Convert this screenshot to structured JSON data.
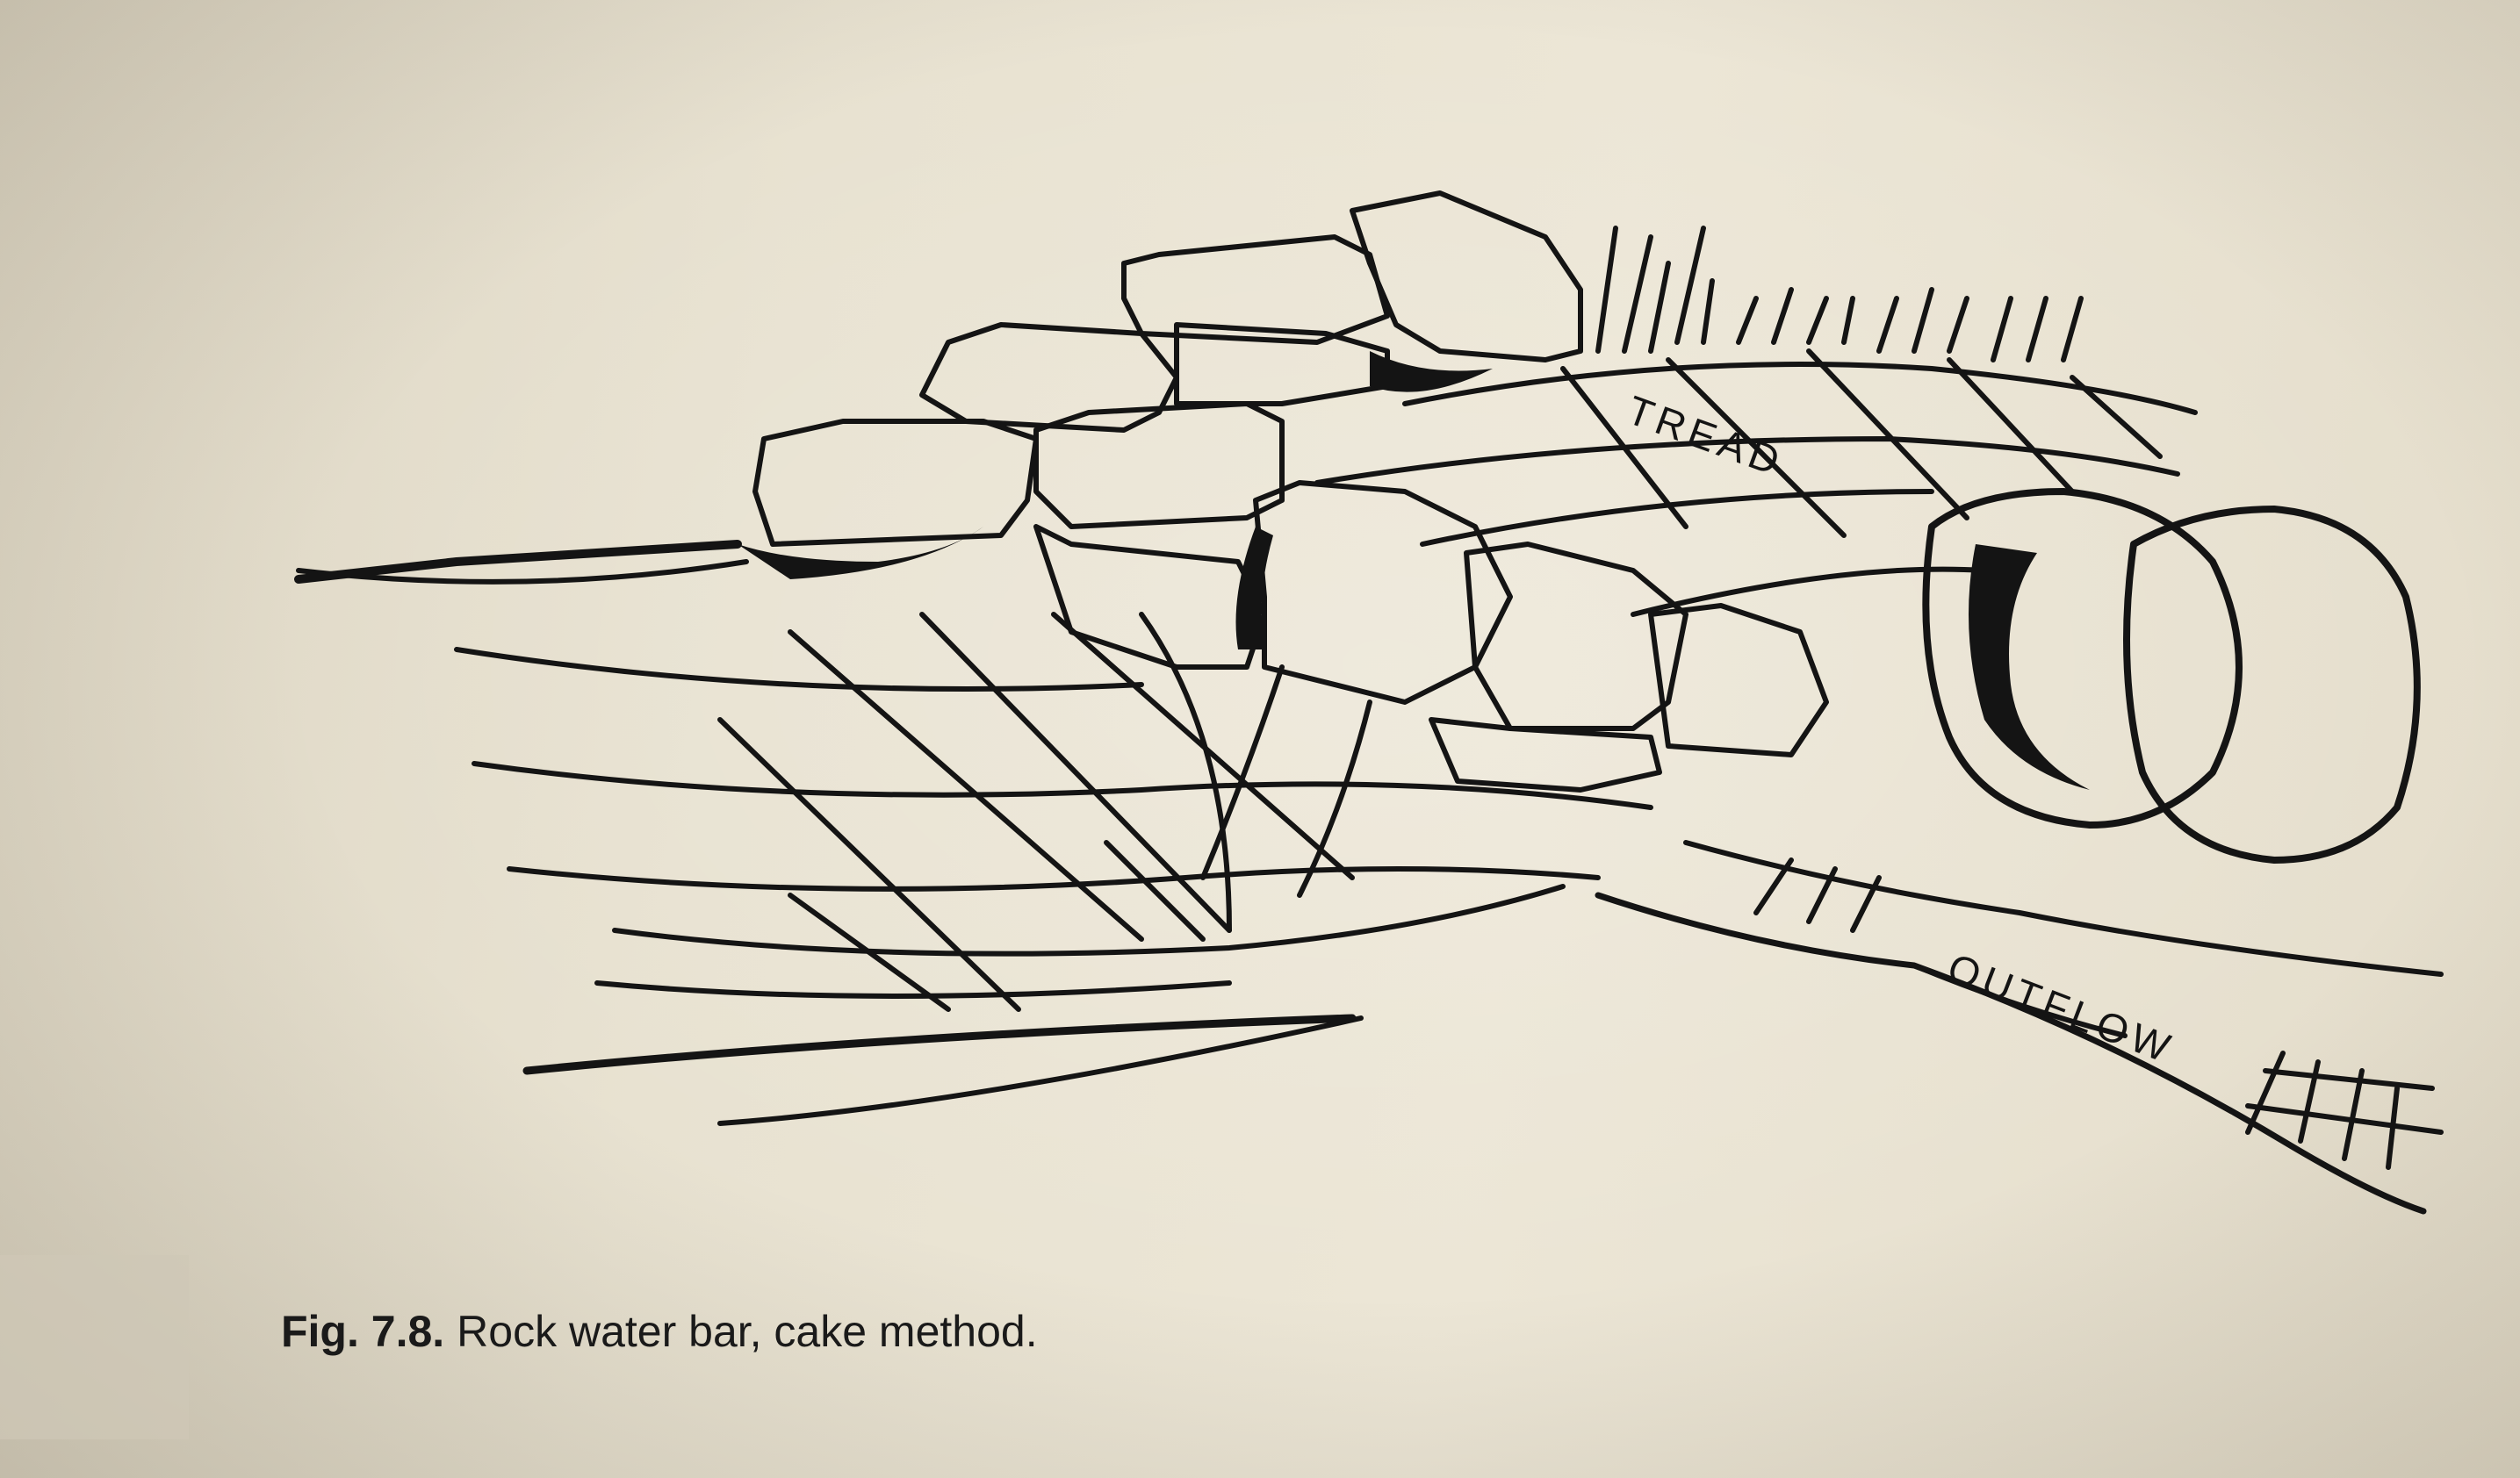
{
  "figure": {
    "labels": {
      "tread": "TREAD",
      "outflow": "OUTFLOW"
    }
  },
  "caption": {
    "number": "Fig. 7.8.",
    "text": "Rock water bar, cake method."
  }
}
